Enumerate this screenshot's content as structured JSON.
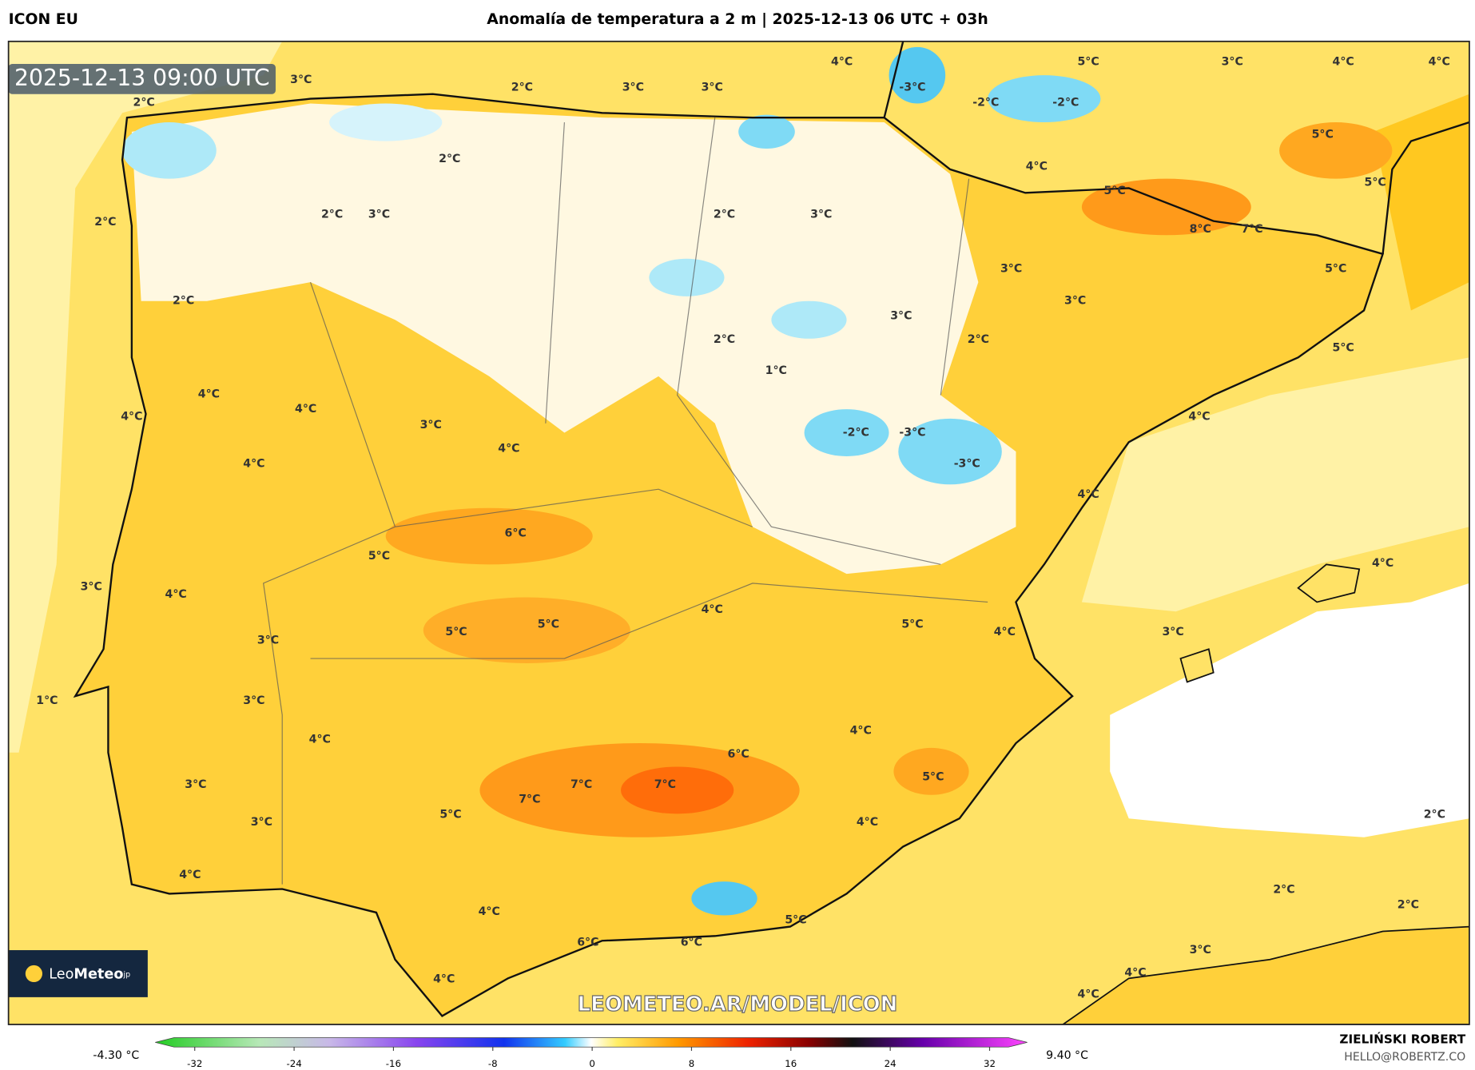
{
  "header": {
    "model": "ICON EU",
    "title": "Anomalía de temperatura a 2 m | 2025-12-13 06 UTC + 03h"
  },
  "map": {
    "timestamp": "2025-12-13 09:00 UTC",
    "labels": [
      "3°C",
      "2°C",
      "3°C",
      "3°C",
      "4°C",
      "-3°C",
      "-2°C",
      "-2°C",
      "5°C",
      "3°C",
      "4°C",
      "4°C",
      "2°C",
      "2°C",
      "5°C",
      "4°C",
      "5°C",
      "5°C",
      "2°C",
      "2°C",
      "3°C",
      "2°C",
      "3°C",
      "8°C",
      "7°C",
      "3°C",
      "5°C",
      "2°C",
      "3°C",
      "3°C",
      "2°C",
      "2°C",
      "5°C",
      "1°C",
      "4°C",
      "4°C",
      "4°C",
      "3°C",
      "4°C",
      "-2°C",
      "-3°C",
      "4°C",
      "-3°C",
      "4°C",
      "4°C",
      "6°C",
      "5°C",
      "4°C",
      "3°C",
      "4°C",
      "4°C",
      "5°C",
      "5°C",
      "5°C",
      "4°C",
      "3°C",
      "3°C",
      "1°C",
      "3°C",
      "4°C",
      "4°C",
      "6°C",
      "3°C",
      "7°C",
      "7°C",
      "5°C",
      "7°C",
      "2°C",
      "5°C",
      "3°C",
      "4°C",
      "4°C",
      "2°C",
      "2°C",
      "4°C",
      "5°C",
      "6°C",
      "6°C",
      "3°C",
      "4°C",
      "4°C",
      "4°C"
    ],
    "logo": {
      "prefix": "Leo",
      "main": "Meteo",
      "suffix": "jp"
    },
    "watermark": "LEOMETEO.AR/MODEL/ICON"
  },
  "colorbar": {
    "min_label": "-4.30 °C",
    "max_label": "9.40 °C",
    "ticks": [
      -32,
      -24,
      -16,
      -8,
      0,
      8,
      16,
      24,
      32
    ]
  },
  "footer": {
    "author": "ZIELIŃSKI ROBERT",
    "email": "HELLO@ROBERTZ.CO"
  }
}
